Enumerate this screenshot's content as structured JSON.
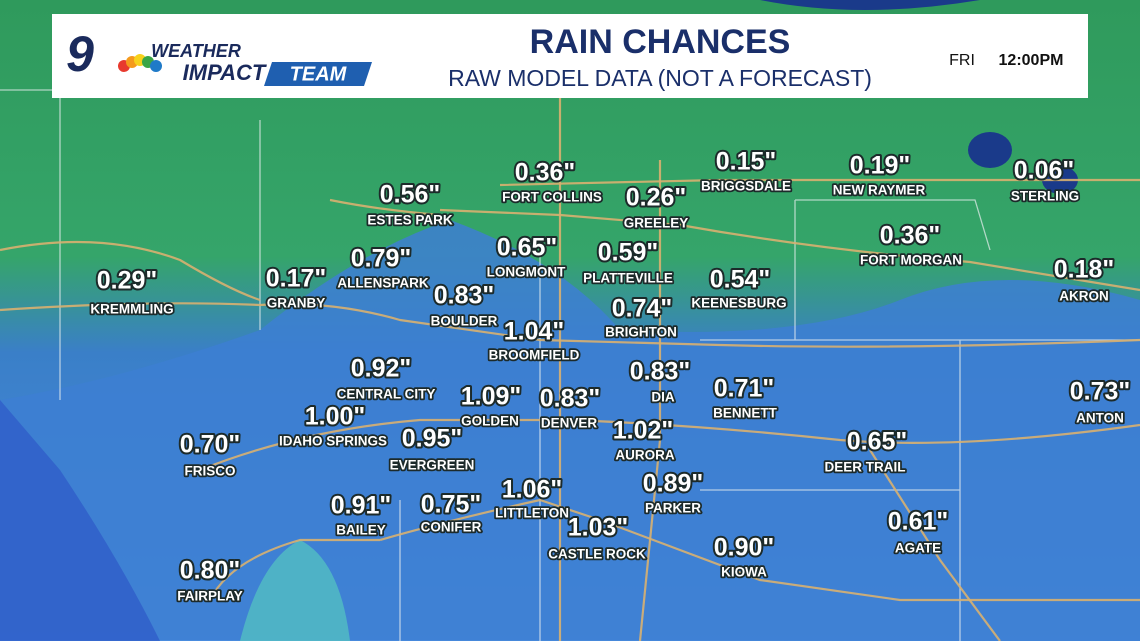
{
  "header": {
    "logo": {
      "number": "9",
      "line1": "WEATHER",
      "line2": "IMPACT",
      "line3": "TEAM"
    },
    "title": "RAIN CHANCES",
    "subtitle": "RAW MODEL DATA (NOT A FORECAST)",
    "day": "FRI",
    "time": "12:00PM"
  },
  "locations": [
    {
      "name": "FORT COLLINS",
      "amount": "0.36\""
    },
    {
      "name": "BRIGGSDALE",
      "amount": "0.15\""
    },
    {
      "name": "NEW RAYMER",
      "amount": "0.19\""
    },
    {
      "name": "STERLING",
      "amount": "0.06\""
    },
    {
      "name": "ESTES PARK",
      "amount": "0.56\""
    },
    {
      "name": "GREELEY",
      "amount": "0.26\""
    },
    {
      "name": "FORT MORGAN",
      "amount": "0.36\""
    },
    {
      "name": "LONGMONT",
      "amount": "0.65\""
    },
    {
      "name": "PLATTEVILLE",
      "amount": "0.59\""
    },
    {
      "name": "ALLENSPARK",
      "amount": "0.79\""
    },
    {
      "name": "KREMMLING",
      "amount": "0.29\""
    },
    {
      "name": "GRANBY",
      "amount": "0.17\""
    },
    {
      "name": "KEENESBURG",
      "amount": "0.54\""
    },
    {
      "name": "AKRON",
      "amount": "0.18\""
    },
    {
      "name": "BOULDER",
      "amount": "0.83\""
    },
    {
      "name": "BRIGHTON",
      "amount": "0.74\""
    },
    {
      "name": "BROOMFIELD",
      "amount": "1.04\""
    },
    {
      "name": "CENTRAL CITY",
      "amount": "0.92\""
    },
    {
      "name": "DIA",
      "amount": "0.83\""
    },
    {
      "name": "BENNETT",
      "amount": "0.71\""
    },
    {
      "name": "ANTON",
      "amount": "0.73\""
    },
    {
      "name": "GOLDEN",
      "amount": "1.09\""
    },
    {
      "name": "DENVER",
      "amount": "0.83\""
    },
    {
      "name": "IDAHO SPRINGS",
      "amount": "1.00\""
    },
    {
      "name": "FRISCO",
      "amount": "0.70\""
    },
    {
      "name": "EVERGREEN",
      "amount": "0.95\""
    },
    {
      "name": "AURORA",
      "amount": "1.02\""
    },
    {
      "name": "DEER TRAIL",
      "amount": "0.65\""
    },
    {
      "name": "PARKER",
      "amount": "0.89\""
    },
    {
      "name": "LITTLETON",
      "amount": "1.06\""
    },
    {
      "name": "BAILEY",
      "amount": "0.91\""
    },
    {
      "name": "CONIFER",
      "amount": "0.75\""
    },
    {
      "name": "CASTLE ROCK",
      "amount": "1.03\""
    },
    {
      "name": "AGATE",
      "amount": "0.61\""
    },
    {
      "name": "KIOWA",
      "amount": "0.90\""
    },
    {
      "name": "FAIRPLAY",
      "amount": "0.80\""
    }
  ]
}
